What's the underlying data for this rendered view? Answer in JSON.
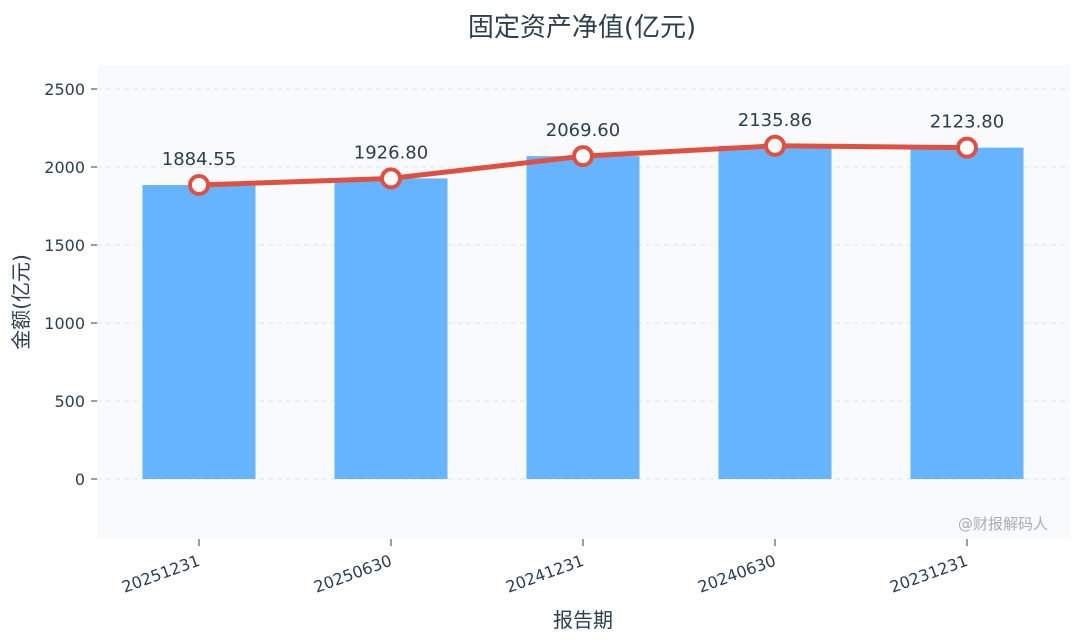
{
  "chart_data": {
    "type": "bar",
    "title": "固定资产净值(亿元)",
    "xlabel": "报告期",
    "ylabel": "金额(亿元)",
    "categories": [
      "20251231",
      "20250630",
      "20241231",
      "20240630",
      "20231231"
    ],
    "series": [
      {
        "kind": "bar",
        "values": [
          1884.55,
          1926.8,
          2069.6,
          2135.86,
          2123.8
        ]
      },
      {
        "kind": "line",
        "values": [
          1884.55,
          1926.8,
          2069.6,
          2135.86,
          2123.8
        ]
      }
    ],
    "data_labels": [
      "1884.55",
      "1926.80",
      "2069.60",
      "2135.86",
      "2123.80"
    ],
    "ylim": [
      -380,
      2620
    ],
    "yticks": [
      0,
      500,
      1000,
      1500,
      2000,
      2500
    ],
    "grid": true,
    "watermark": "@财报解码人",
    "colors": {
      "bar": "#66b3ff",
      "line": "#e05040",
      "marker_fill": "#ffffff",
      "plot_bg": "#f8fafc",
      "grid": "#dfe4ea",
      "text": "#2c3e50"
    }
  }
}
